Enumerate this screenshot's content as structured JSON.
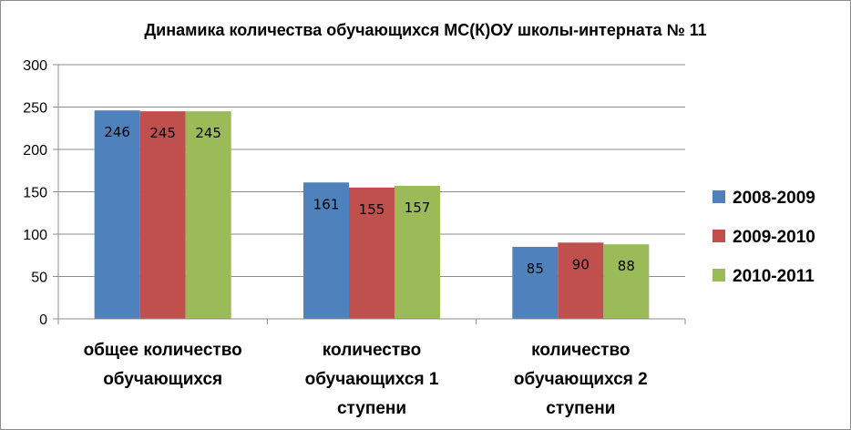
{
  "chart_data": {
    "type": "bar",
    "title": "Динамика количества обучающихся МС(К)ОУ школы-интерната № 11",
    "categories": [
      [
        "общее количество",
        "обучающихся"
      ],
      [
        "количество",
        "обучающихся 1",
        "ступени"
      ],
      [
        "количество",
        "обучающихся 2",
        "ступени"
      ]
    ],
    "series": [
      {
        "name": "2008-2009",
        "color": "#4f81bd",
        "values": [
          246,
          161,
          85
        ]
      },
      {
        "name": "2009-2010",
        "color": "#c0504d",
        "values": [
          245,
          155,
          90
        ]
      },
      {
        "name": "2010-2011",
        "color": "#9bbb59",
        "values": [
          245,
          157,
          88
        ]
      }
    ],
    "ylim": [
      0,
      300
    ],
    "yticks": [
      0,
      50,
      100,
      150,
      200,
      250,
      300
    ],
    "grid": true,
    "legend_position": "right",
    "data_labels": true
  }
}
